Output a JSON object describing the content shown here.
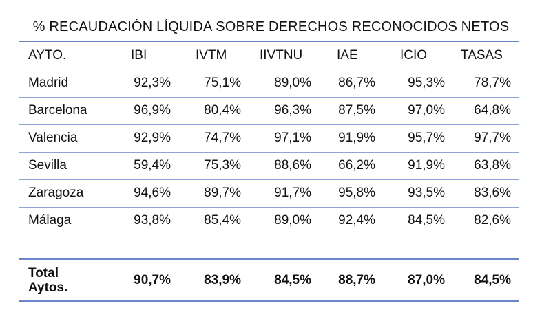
{
  "title": "% RECAUDACIÓN LÍQUIDA SOBRE DERECHOS RECONOCIDOS NETOS",
  "headers": [
    "AYTO.",
    "IBI",
    "IVTM",
    "IIVTNU",
    "IAE",
    "ICIO",
    "TASAS"
  ],
  "rows": [
    {
      "name": "Madrid",
      "values": [
        "92,3%",
        "75,1%",
        "89,0%",
        "86,7%",
        "95,3%",
        "78,7%"
      ]
    },
    {
      "name": "Barcelona",
      "values": [
        "96,9%",
        "80,4%",
        "96,3%",
        "87,5%",
        "97,0%",
        "64,8%"
      ]
    },
    {
      "name": "Valencia",
      "values": [
        "92,9%",
        "74,7%",
        "97,1%",
        "91,9%",
        "95,7%",
        "97,7%"
      ]
    },
    {
      "name": "Sevilla",
      "values": [
        "59,4%",
        "75,3%",
        "88,6%",
        "66,2%",
        "91,9%",
        "63,8%"
      ]
    },
    {
      "name": "Zaragoza",
      "values": [
        "94,6%",
        "89,7%",
        "91,7%",
        "95,8%",
        "93,5%",
        "83,6%"
      ]
    },
    {
      "name": "Málaga",
      "values": [
        "93,8%",
        "85,4%",
        "89,0%",
        "92,4%",
        "84,5%",
        "82,6%"
      ]
    }
  ],
  "total": {
    "name_line1": "Total",
    "name_line2": "Aytos.",
    "values": [
      "90,7%",
      "83,9%",
      "84,5%",
      "88,7%",
      "87,0%",
      "84,5%"
    ]
  },
  "colors": {
    "rule": "#6a86c6",
    "text": "#111111"
  }
}
